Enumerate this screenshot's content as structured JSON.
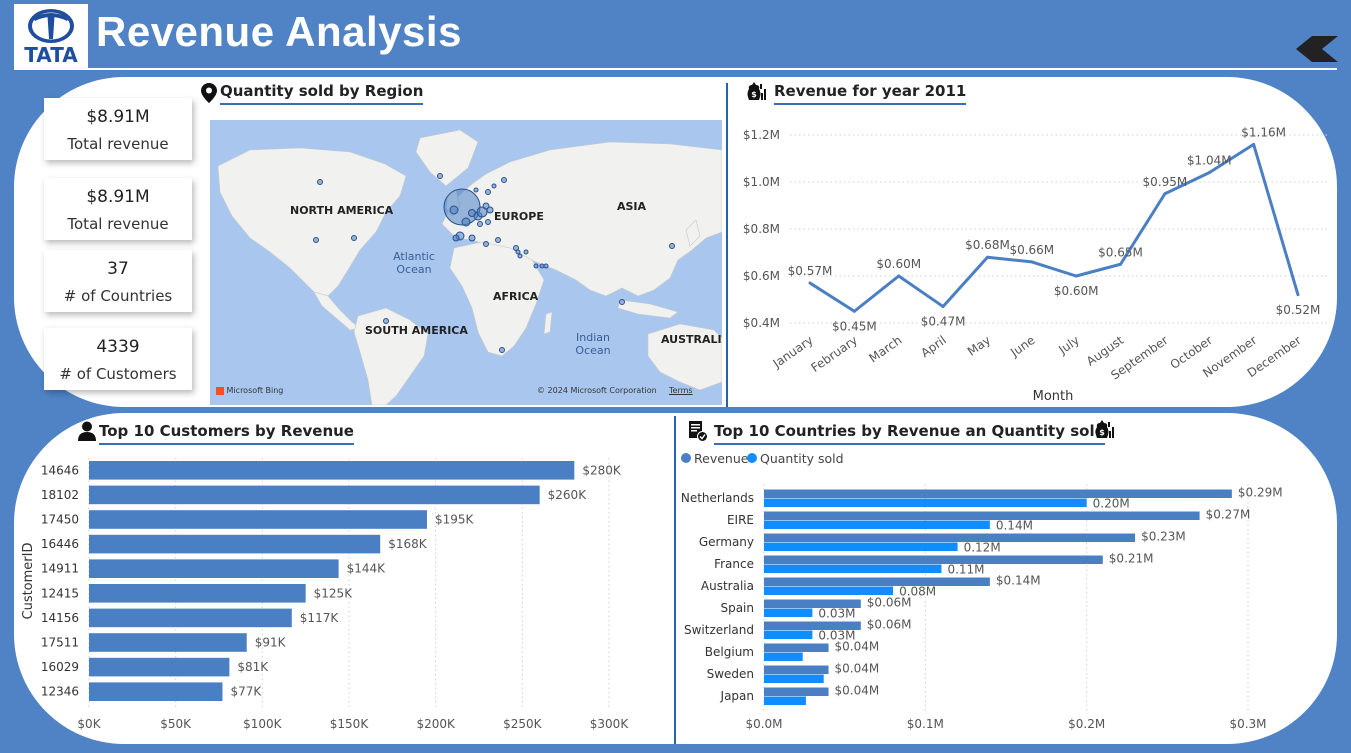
{
  "header": {
    "title": "Revenue Analysis",
    "logo_text": "TATA",
    "back_icon": "back-chevron-icon"
  },
  "kpis": [
    {
      "value": "$8.91M",
      "label": "Total revenue"
    },
    {
      "value": "$8.91M",
      "label": "Total revenue"
    },
    {
      "value": "37",
      "label": "# of Countries"
    },
    {
      "value": "4339",
      "label": "# of Customers"
    }
  ],
  "map": {
    "title": "Quantity sold by Region",
    "icon": "location-pin-icon",
    "labels": {
      "north_america": "NORTH AMERICA",
      "europe": "EUROPE",
      "asia": "ASIA",
      "africa": "AFRICA",
      "south_america": "SOUTH AMERICA",
      "australia": "AUSTRALIA"
    },
    "oceans": {
      "atlantic_1": "Atlantic",
      "atlantic_2": "Ocean",
      "indian_1": "Indian",
      "indian_2": "Ocean"
    },
    "bing": "Microsoft Bing",
    "copyright": "© 2024 Microsoft Corporation",
    "terms": "Terms"
  },
  "colors": {
    "primary": "#4a7fc4",
    "secondary": "#118dff",
    "background": "#5083c6",
    "panel": "#ffffff"
  },
  "chart_data": [
    {
      "type": "line",
      "title": "Revenue for year 2011",
      "icon": "money-bag-chart-icon",
      "xlabel": "Month",
      "ylabel": "",
      "categories": [
        "January",
        "February",
        "March",
        "April",
        "May",
        "June",
        "July",
        "August",
        "September",
        "October",
        "November",
        "December"
      ],
      "values": [
        0.57,
        0.45,
        0.6,
        0.47,
        0.68,
        0.66,
        0.6,
        0.65,
        0.95,
        1.04,
        1.16,
        0.52
      ],
      "data_labels": [
        "$0.57M",
        "$0.45M",
        "$0.60M",
        "$0.47M",
        "$0.68M",
        "$0.66M",
        "$0.60M",
        "$0.65M",
        "$0.95M",
        "$1.04M",
        "$1.16M",
        "$0.52M"
      ],
      "yticks": [
        0.4,
        0.6,
        0.8,
        1.0,
        1.2
      ],
      "ytick_labels": [
        "$0.4M",
        "$0.6M",
        "$0.8M",
        "$1.0M",
        "$1.2M"
      ],
      "ylim": [
        0.4,
        1.2
      ],
      "grid": true
    },
    {
      "type": "bar",
      "orientation": "horizontal",
      "title": "Top 10 Customers by Revenue",
      "icon": "person-icon",
      "ylabel": "CustomerID",
      "xlabel": "",
      "categories": [
        "14646",
        "18102",
        "17450",
        "16446",
        "14911",
        "12415",
        "14156",
        "17511",
        "16029",
        "12346"
      ],
      "values": [
        280,
        260,
        195,
        168,
        144,
        125,
        117,
        91,
        81,
        77
      ],
      "data_labels": [
        "$280K",
        "$260K",
        "$195K",
        "$168K",
        "$144K",
        "$125K",
        "$117K",
        "$91K",
        "$81K",
        "$77K"
      ],
      "xticks": [
        0,
        50,
        100,
        150,
        200,
        250,
        300
      ],
      "xtick_labels": [
        "$0K",
        "$50K",
        "$100K",
        "$150K",
        "$200K",
        "$250K",
        "$300K"
      ],
      "xlim": [
        0,
        300
      ],
      "grid": true
    },
    {
      "type": "bar",
      "orientation": "horizontal",
      "title": "Top 10 Countries by Revenue an Quantity sold",
      "icons": [
        "report-icon",
        "money-bag-chart-icon"
      ],
      "legend_position": "top-left",
      "categories": [
        "Netherlands",
        "EIRE",
        "Germany",
        "France",
        "Australia",
        "Spain",
        "Switzerland",
        "Belgium",
        "Sweden",
        "Japan"
      ],
      "series": [
        {
          "name": "Revenue",
          "values": [
            0.29,
            0.27,
            0.23,
            0.21,
            0.14,
            0.06,
            0.06,
            0.04,
            0.04,
            0.04
          ],
          "data_labels": [
            "$0.29M",
            "$0.27M",
            "$0.23M",
            "$0.21M",
            "$0.14M",
            "$0.06M",
            "$0.06M",
            "$0.04M",
            "$0.04M",
            "$0.04M"
          ]
        },
        {
          "name": "Quantity sold",
          "values": [
            0.2,
            0.14,
            0.12,
            0.11,
            0.08,
            0.03,
            0.03,
            0.024,
            0.037,
            0.026
          ],
          "data_labels": [
            "0.20M",
            "0.14M",
            "0.12M",
            "0.11M",
            "0.08M",
            "0.03M",
            "0.03M",
            "",
            "",
            ""
          ]
        }
      ],
      "xticks": [
        0,
        0.1,
        0.2,
        0.3
      ],
      "xtick_labels": [
        "$0.0M",
        "$0.1M",
        "$0.2M",
        "$0.3M"
      ],
      "xlim": [
        0,
        0.3
      ],
      "grid": true
    }
  ]
}
